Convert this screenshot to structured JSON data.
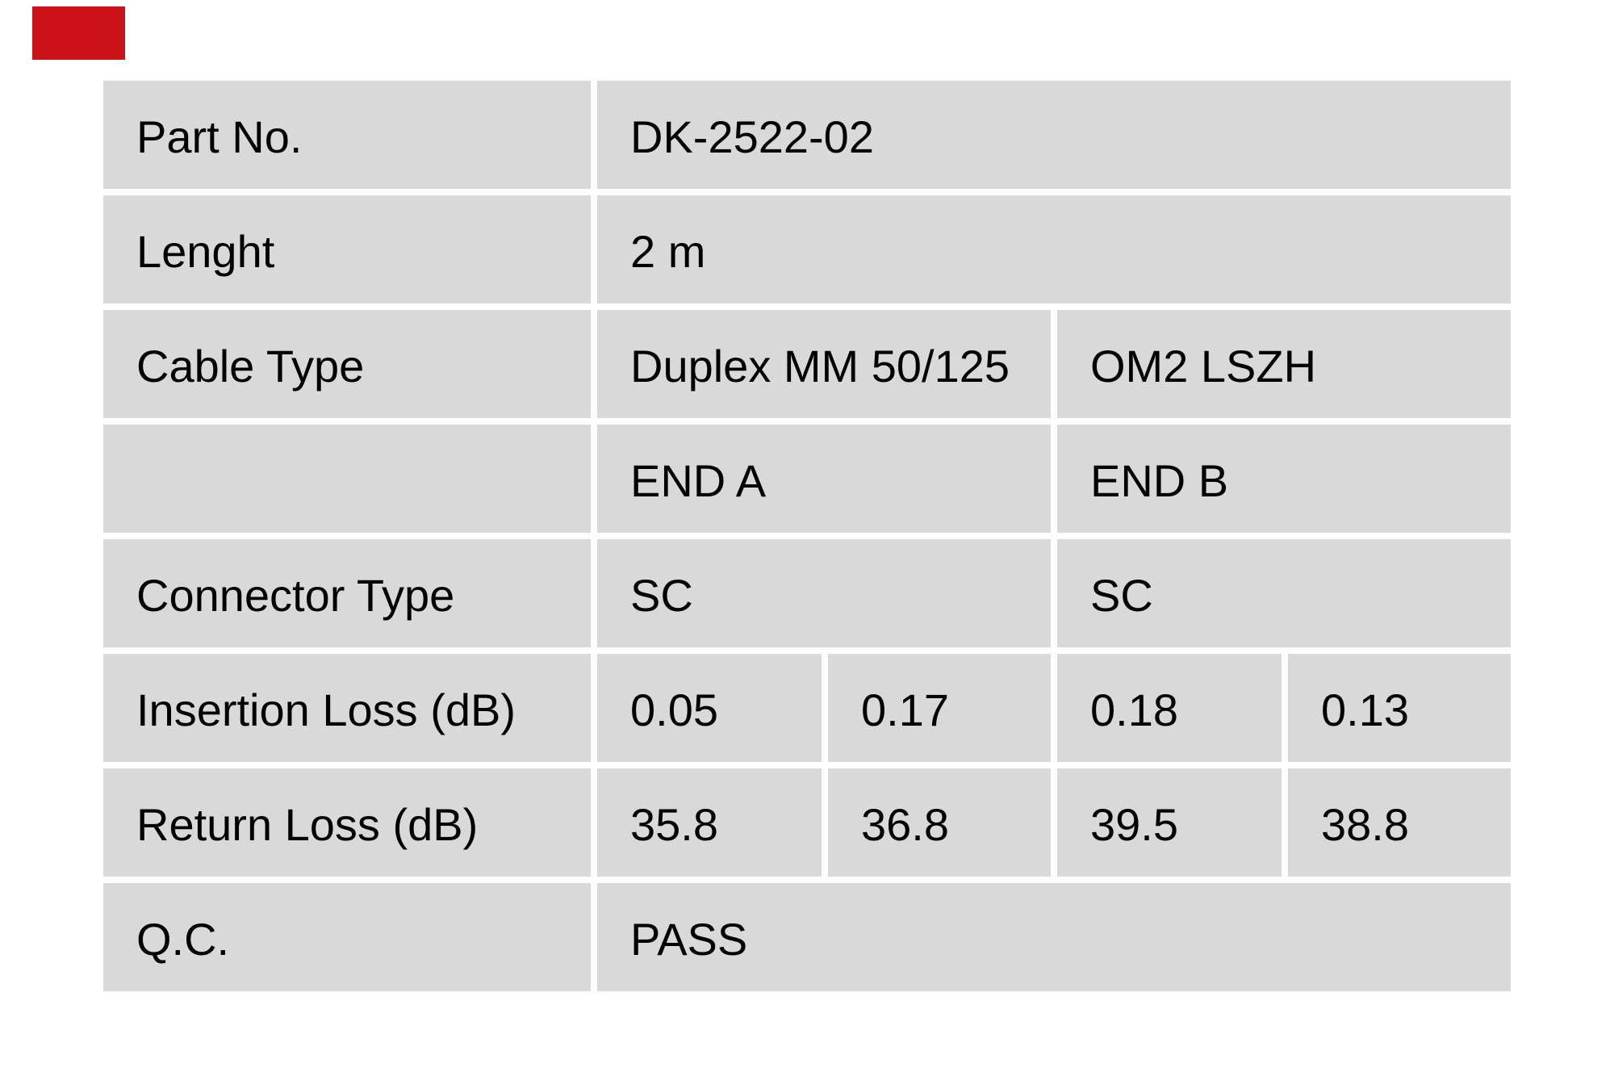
{
  "page": {
    "background": "#ffffff",
    "marker_color": "#cb1218"
  },
  "table": {
    "cell_bg": "#d9d9d9",
    "text_color": "#000000",
    "columns": 5,
    "rows": [
      {
        "label": "Part No.",
        "values": [
          {
            "text": "DK-2522-02",
            "span": 4
          }
        ]
      },
      {
        "label": "Lenght",
        "values": [
          {
            "text": "2 m",
            "span": 4
          }
        ]
      },
      {
        "label": "Cable Type",
        "values": [
          {
            "text": "Duplex MM 50/125",
            "span": 2
          },
          {
            "text": "OM2 LSZH",
            "span": 2
          }
        ]
      },
      {
        "label": "",
        "values": [
          {
            "text": "END A",
            "span": 2
          },
          {
            "text": "END B",
            "span": 2
          }
        ]
      },
      {
        "label": "Connector Type",
        "values": [
          {
            "text": "SC",
            "span": 2
          },
          {
            "text": "SC",
            "span": 2
          }
        ]
      },
      {
        "label": "Insertion Loss (dB)",
        "values": [
          {
            "text": "0.05",
            "span": 1
          },
          {
            "text": "0.17",
            "span": 1
          },
          {
            "text": "0.18",
            "span": 1
          },
          {
            "text": "0.13",
            "span": 1
          }
        ]
      },
      {
        "label": "Return Loss (dB)",
        "values": [
          {
            "text": "35.8",
            "span": 1
          },
          {
            "text": "36.8",
            "span": 1
          },
          {
            "text": "39.5",
            "span": 1
          },
          {
            "text": "38.8",
            "span": 1
          }
        ]
      },
      {
        "label": "Q.C.",
        "values": [
          {
            "text": "PASS",
            "span": 4
          }
        ]
      }
    ]
  }
}
